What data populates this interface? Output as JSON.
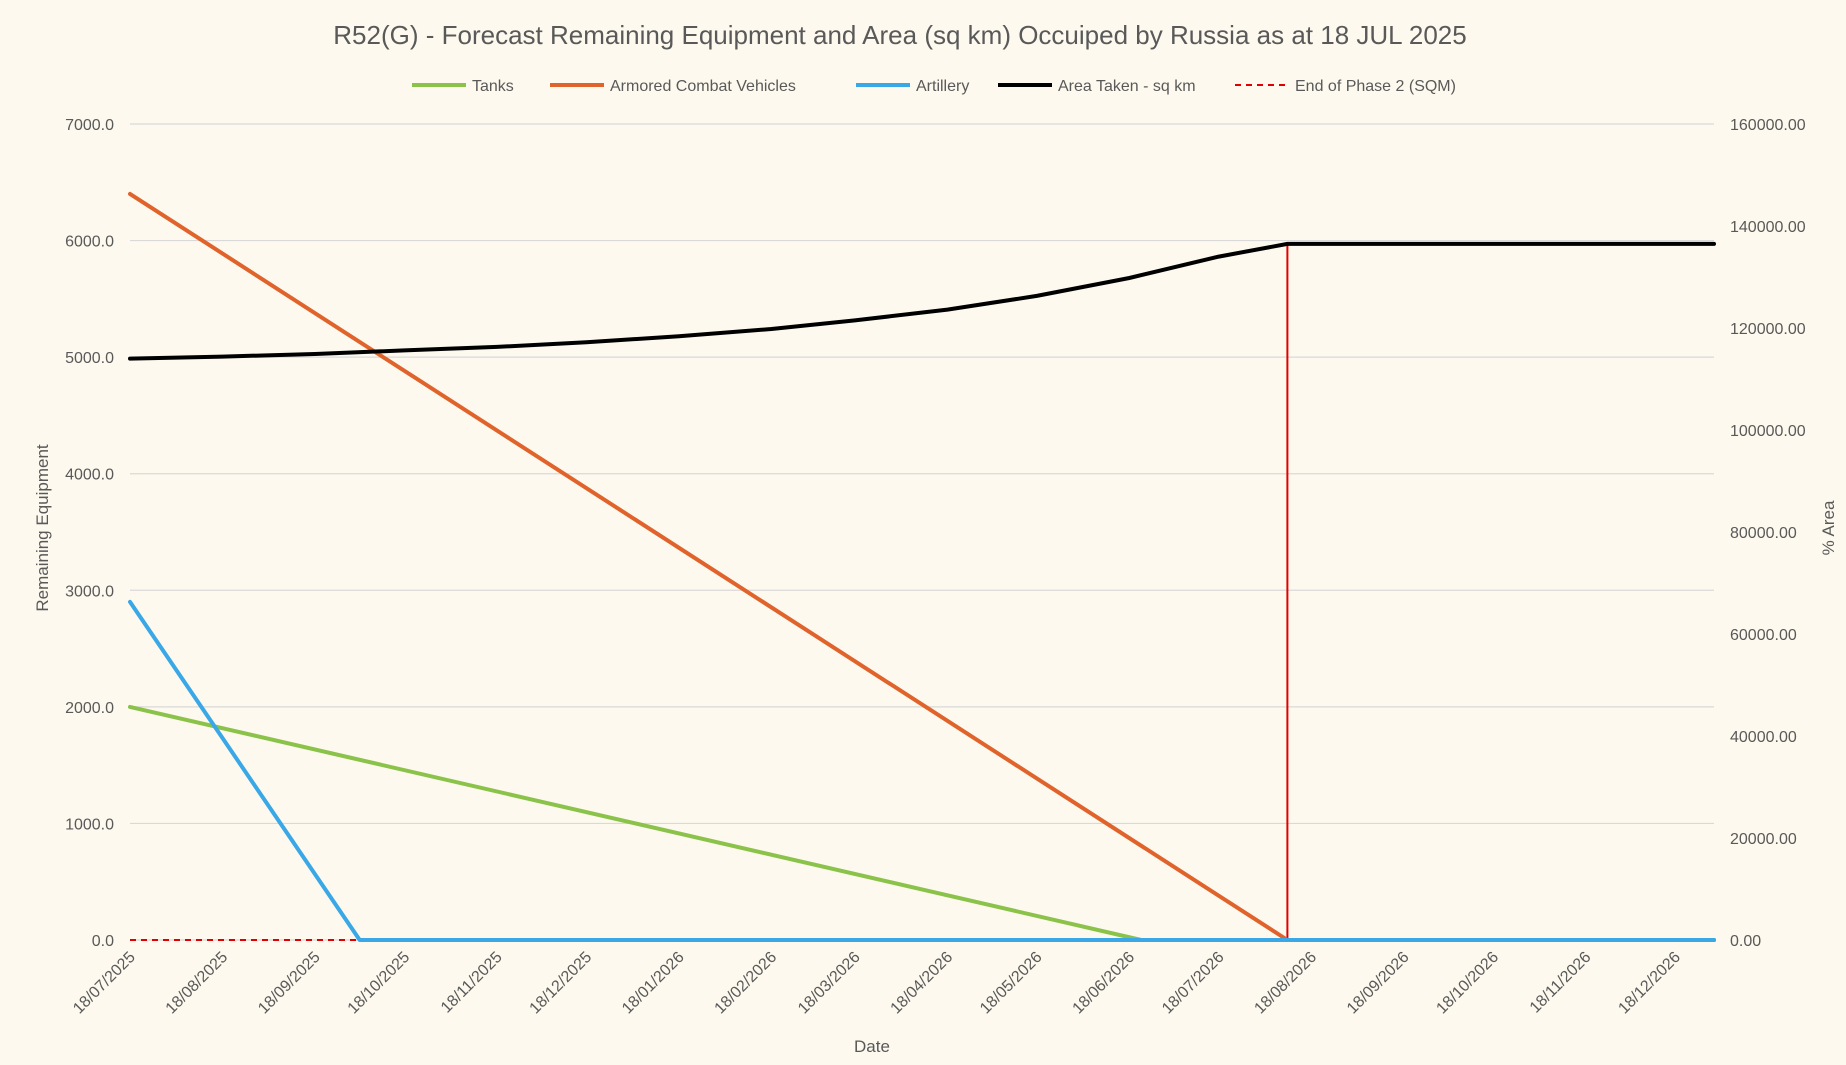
{
  "chart_data": {
    "type": "line",
    "title": "R52(G) - Forecast Remaining Equipment and Area (sq km) Occuiped by Russia as at 18 JUL 2025",
    "xlabel": "Date",
    "ylabel": "Remaining Equipment",
    "y2label": "% Area",
    "ylim": [
      0,
      7000
    ],
    "y2lim": [
      0,
      160000
    ],
    "y_ticks": [
      "0.0",
      "1000.0",
      "2000.0",
      "3000.0",
      "4000.0",
      "5000.0",
      "6000.0",
      "7000.0"
    ],
    "y2_ticks": [
      "0.00",
      "20000.00",
      "40000.00",
      "60000.00",
      "80000.00",
      "100000.00",
      "120000.00",
      "140000.00",
      "160000.00"
    ],
    "x_range": [
      "2025-07-18",
      "2026-12-31"
    ],
    "x_ticks": [
      {
        "label": "18/07/2025",
        "date": "2025-07-18"
      },
      {
        "label": "18/08/2025",
        "date": "2025-08-18"
      },
      {
        "label": "18/09/2025",
        "date": "2025-09-18"
      },
      {
        "label": "18/10/2025",
        "date": "2025-10-18"
      },
      {
        "label": "18/11/2025",
        "date": "2025-11-18"
      },
      {
        "label": "18/12/2025",
        "date": "2025-12-18"
      },
      {
        "label": "18/01/2026",
        "date": "2026-01-18"
      },
      {
        "label": "18/02/2026",
        "date": "2026-02-18"
      },
      {
        "label": "18/03/2026",
        "date": "2026-03-18"
      },
      {
        "label": "18/04/2026",
        "date": "2026-04-18"
      },
      {
        "label": "18/05/2026",
        "date": "2026-05-18"
      },
      {
        "label": "18/06/2026",
        "date": "2026-06-18"
      },
      {
        "label": "18/07/2026",
        "date": "2026-07-18"
      },
      {
        "label": "18/08/2026",
        "date": "2026-08-18"
      },
      {
        "label": "18/09/2026",
        "date": "2026-09-18"
      },
      {
        "label": "18/10/2026",
        "date": "2026-10-18"
      },
      {
        "label": "18/11/2026",
        "date": "2026-11-18"
      },
      {
        "label": "18/12/2026",
        "date": "2026-12-18"
      }
    ],
    "grid": true,
    "legend_position": "top",
    "series": [
      {
        "name": "Tanks",
        "axis": "left",
        "color": "#8bc34a",
        "style": "solid",
        "points": [
          [
            "2025-07-18",
            2000
          ],
          [
            "2026-06-22",
            0
          ],
          [
            "2026-12-31",
            0
          ]
        ]
      },
      {
        "name": "Armored Combat Vehicles",
        "axis": "left",
        "color": "#e0632b",
        "style": "solid",
        "points": [
          [
            "2025-07-18",
            6400
          ],
          [
            "2026-08-10",
            0
          ],
          [
            "2026-12-31",
            0
          ]
        ]
      },
      {
        "name": "Artillery",
        "axis": "left",
        "color": "#3aa8e6",
        "style": "solid",
        "points": [
          [
            "2025-07-18",
            2900
          ],
          [
            "2025-10-03",
            0
          ],
          [
            "2026-12-31",
            0
          ]
        ]
      },
      {
        "name": "Area Taken - sq km",
        "axis": "right",
        "color": "#000000",
        "style": "solid",
        "points": [
          [
            "2025-07-18",
            114000
          ],
          [
            "2025-08-18",
            114400
          ],
          [
            "2025-09-18",
            114900
          ],
          [
            "2025-10-18",
            115600
          ],
          [
            "2025-11-18",
            116300
          ],
          [
            "2025-12-18",
            117200
          ],
          [
            "2026-01-18",
            118400
          ],
          [
            "2026-02-18",
            119800
          ],
          [
            "2026-03-18",
            121500
          ],
          [
            "2026-04-18",
            123600
          ],
          [
            "2026-05-18",
            126300
          ],
          [
            "2026-06-18",
            129800
          ],
          [
            "2026-07-18",
            134000
          ],
          [
            "2026-08-10",
            136500
          ],
          [
            "2026-12-31",
            136500
          ]
        ]
      },
      {
        "name": "End of Phase 2 (SQM)",
        "axis": "right",
        "color": "#e00000",
        "style": "dashed",
        "points": [
          [
            "2025-07-18",
            0
          ],
          [
            "2026-08-10",
            0
          ],
          [
            "2026-08-10",
            136500
          ],
          [
            "2026-08-10",
            0
          ],
          [
            "2026-12-31",
            0
          ]
        ]
      }
    ]
  }
}
